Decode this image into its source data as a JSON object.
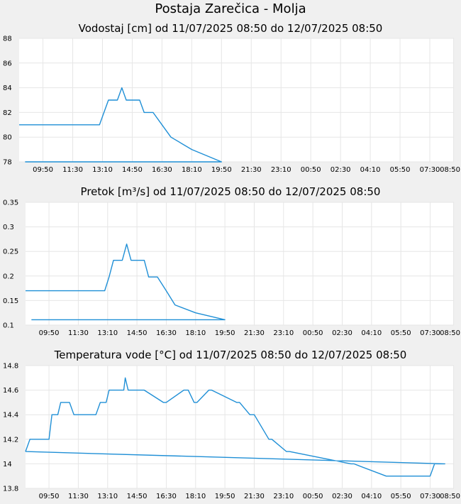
{
  "page": {
    "title": "Postaja Zarečica - Molja"
  },
  "colors": {
    "line": "#1f8fd6",
    "plot_bg": "#ffffff",
    "grid": "#e6e6e6",
    "page_bg": "#f0f0f0"
  },
  "chart_data": [
    {
      "type": "line",
      "title": "Vodostaj [cm] od 11/07/2025 08:50 do 12/07/2025 08:50",
      "xlabel": "",
      "ylabel": "",
      "grid": true,
      "x_ticks": [
        "09:50",
        "11:30",
        "13:10",
        "14:50",
        "16:30",
        "18:10",
        "19:50",
        "21:30",
        "23:10",
        "00:50",
        "02:30",
        "04:10",
        "05:50",
        "07:30",
        "08:50"
      ],
      "y_ticks": [
        "78",
        "80",
        "82",
        "84",
        "86",
        "88"
      ],
      "ylim": [
        78,
        88
      ],
      "xlim_hours": [
        8.5,
        32.85
      ],
      "series": [
        {
          "x": [
            "08:30",
            "13:00",
            "13:15",
            "13:30",
            "14:00",
            "14:15",
            "14:30",
            "15:15",
            "15:30",
            "16:00",
            "16:30",
            "17:00",
            "18:10",
            "19:50",
            "08:50"
          ],
          "values": [
            81,
            81,
            82,
            83,
            83,
            84,
            83,
            83,
            82,
            82,
            81,
            80,
            79,
            78,
            78
          ]
        }
      ]
    },
    {
      "type": "line",
      "title": "Pretok [m³/s] od 11/07/2025 08:50 do 12/07/2025 08:50",
      "xlabel": "",
      "ylabel": "",
      "grid": true,
      "x_ticks": [
        "09:50",
        "11:30",
        "13:10",
        "14:50",
        "16:30",
        "18:10",
        "19:50",
        "21:30",
        "23:10",
        "00:50",
        "02:30",
        "04:10",
        "05:50",
        "07:30",
        "08:50"
      ],
      "y_ticks": [
        "0.1",
        "0.15",
        "0.2",
        "0.25",
        "0.3",
        "0.35"
      ],
      "ylim": [
        0.1,
        0.35
      ],
      "xlim_hours": [
        8.5,
        32.85
      ],
      "series": [
        {
          "x": [
            "08:30",
            "13:00",
            "13:15",
            "13:30",
            "14:00",
            "14:15",
            "14:30",
            "15:15",
            "15:30",
            "16:00",
            "16:30",
            "17:00",
            "18:10",
            "19:50",
            "08:50"
          ],
          "values": [
            0.17,
            0.17,
            0.198,
            0.232,
            0.232,
            0.265,
            0.232,
            0.232,
            0.198,
            0.198,
            0.17,
            0.141,
            0.125,
            0.111,
            0.111
          ]
        }
      ]
    },
    {
      "type": "line",
      "title": "Temperatura vode [°C] od 11/07/2025 08:50 do 12/07/2025 08:50",
      "xlabel": "",
      "ylabel": "",
      "grid": true,
      "x_ticks": [
        "09:50",
        "11:30",
        "13:10",
        "14:50",
        "16:30",
        "18:10",
        "19:50",
        "21:30",
        "23:10",
        "00:50",
        "02:30",
        "04:10",
        "05:50",
        "07:30",
        "08:50"
      ],
      "y_ticks": [
        "13.8",
        "14",
        "14.2",
        "14.4",
        "14.6",
        "14.8"
      ],
      "ylim": [
        13.8,
        14.8
      ],
      "xlim_hours": [
        8.5,
        32.85
      ],
      "series": [
        {
          "x": [
            "08:30",
            "08:45",
            "09:50",
            "10:00",
            "10:20",
            "10:30",
            "11:00",
            "11:15",
            "12:30",
            "12:45",
            "13:05",
            "13:15",
            "14:05",
            "14:10",
            "14:20",
            "15:15",
            "16:20",
            "16:30",
            "17:30",
            "17:45",
            "18:05",
            "18:15",
            "18:55",
            "19:05",
            "20:30",
            "20:40",
            "21:15",
            "21:30",
            "22:20",
            "22:30",
            "23:20",
            "23:30",
            "03:00",
            "03:10",
            "05:00",
            "05:10",
            "07:30",
            "07:45",
            "08:20",
            "08:30"
          ],
          "values": [
            14.1,
            14.2,
            14.2,
            14.4,
            14.4,
            14.5,
            14.5,
            14.4,
            14.4,
            14.5,
            14.5,
            14.6,
            14.6,
            14.7,
            14.6,
            14.6,
            14.5,
            14.5,
            14.6,
            14.6,
            14.5,
            14.5,
            14.6,
            14.6,
            14.5,
            14.5,
            14.4,
            14.4,
            14.2,
            14.2,
            14.1,
            14.1,
            14.0,
            14.0,
            13.9,
            13.9,
            13.9,
            14.0,
            14.0,
            14.1
          ]
        }
      ]
    }
  ]
}
